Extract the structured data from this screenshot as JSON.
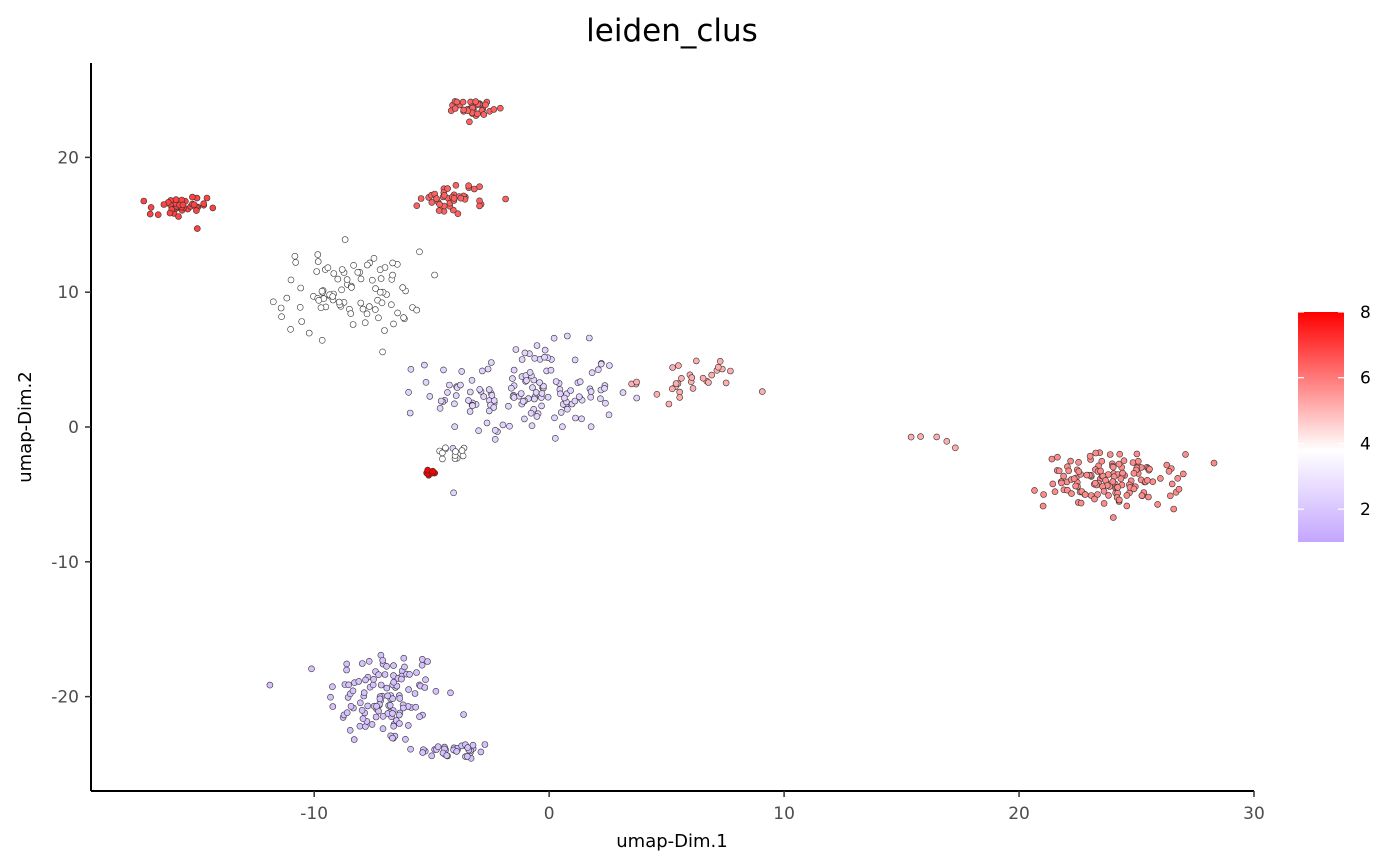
{
  "chart_data": {
    "type": "scatter",
    "title": "leiden_clus",
    "xlabel": "umap-Dim.1",
    "ylabel": "umap-Dim.2",
    "xlim": [
      -19.5,
      30
    ],
    "ylim": [
      -27,
      27
    ],
    "x_ticks": [
      -10,
      0,
      10,
      20,
      30
    ],
    "y_ticks": [
      -20,
      -10,
      0,
      10,
      20
    ],
    "x_tick_labels": [
      "-10",
      "0",
      "10",
      "20",
      "30"
    ],
    "y_tick_labels": [
      "-20",
      "-10",
      "0",
      "10",
      "20"
    ],
    "grid": false,
    "color_scale": {
      "variable": "leiden_clus",
      "min": 1,
      "mid": 3,
      "max": 8,
      "low_color": "#c4a6ff",
      "mid_color": "#ffffff",
      "high_color": "#ff0000",
      "breaks": [
        2,
        4,
        6,
        8
      ],
      "break_labels": [
        "2",
        "4",
        "6",
        "8"
      ],
      "legend_position": "right"
    },
    "clusters": [
      {
        "id": 1,
        "value": 1.6,
        "shape": "blob",
        "center": [
          -7.0,
          -20.0
        ],
        "spread": [
          2.2,
          3.3
        ],
        "n": 120
      },
      {
        "id": 1,
        "value": 1.6,
        "shape": "blob",
        "center": [
          -4.0,
          -24.0
        ],
        "spread": [
          1.6,
          0.6
        ],
        "n": 35
      },
      {
        "id": 2,
        "value": 2.0,
        "shape": "blob",
        "center": [
          -1.0,
          2.5
        ],
        "spread": [
          3.6,
          3.2
        ],
        "n": 150
      },
      {
        "id": 3,
        "value": 3.0,
        "shape": "blob",
        "center": [
          -8.5,
          10.0
        ],
        "spread": [
          2.8,
          2.8
        ],
        "n": 90
      },
      {
        "id": 3,
        "value": 3.0,
        "shape": "blob",
        "center": [
          -4.0,
          -2.0
        ],
        "spread": [
          1.0,
          0.6
        ],
        "n": 12
      },
      {
        "id": 4,
        "value": 4.6,
        "shape": "blob",
        "center": [
          6.0,
          3.5
        ],
        "spread": [
          2.0,
          1.4
        ],
        "n": 30
      },
      {
        "id": 4,
        "value": 4.6,
        "shape": "line",
        "from": [
          15.5,
          -0.5
        ],
        "to": [
          17.2,
          -1.4
        ],
        "n": 5
      },
      {
        "id": 5,
        "value": 5.3,
        "shape": "blob",
        "center": [
          24.0,
          -4.0
        ],
        "spread": [
          2.6,
          1.8
        ],
        "n": 140
      },
      {
        "id": 6,
        "value": 6.1,
        "shape": "blob",
        "center": [
          -4.0,
          17.0
        ],
        "spread": [
          1.3,
          1.1
        ],
        "n": 40
      },
      {
        "id": 6,
        "value": 6.1,
        "shape": "blob",
        "center": [
          -3.2,
          23.7
        ],
        "spread": [
          0.7,
          0.5
        ],
        "n": 35
      },
      {
        "id": 7,
        "value": 6.7,
        "shape": "blob",
        "center": [
          -15.8,
          16.2
        ],
        "spread": [
          1.1,
          0.9
        ],
        "n": 40
      },
      {
        "id": 8,
        "value": 8.0,
        "shape": "blob",
        "center": [
          -5.1,
          -3.4
        ],
        "spread": [
          0.3,
          0.25
        ],
        "n": 8
      }
    ]
  }
}
